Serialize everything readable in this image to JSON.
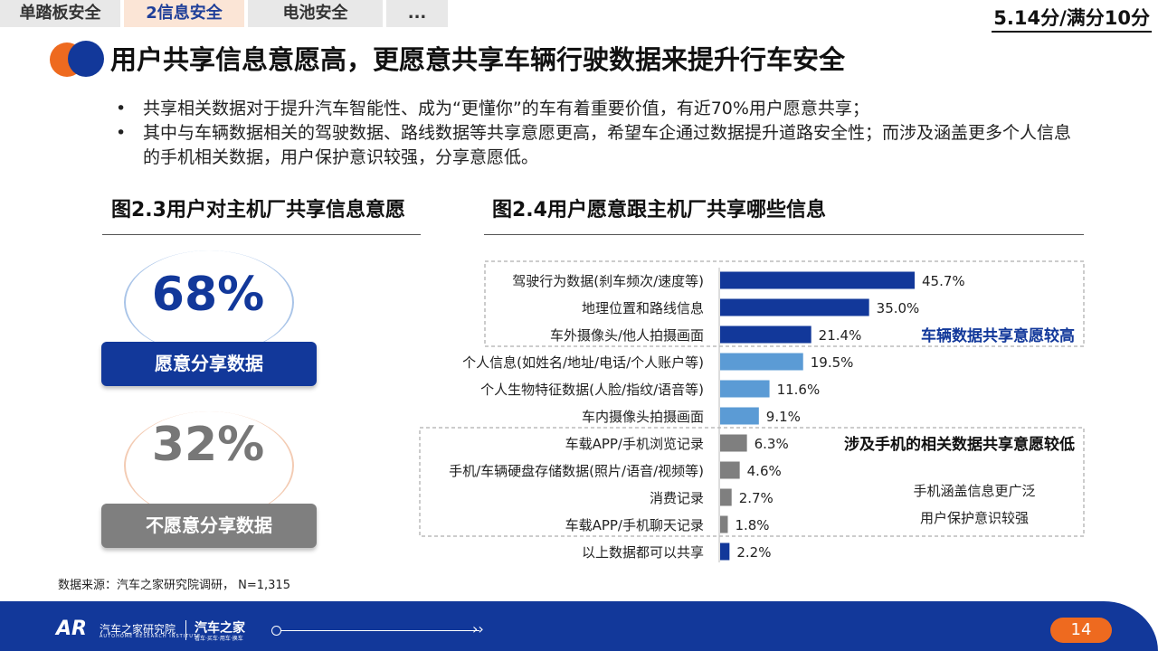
{
  "tabs": [
    {
      "label": "单踏板安全",
      "active": false
    },
    {
      "label": "2信息安全",
      "active": true
    },
    {
      "label": "电池安全",
      "active": false
    },
    {
      "label": "...",
      "active": false
    }
  ],
  "score": "5.14分/满分10分",
  "title": "用户共享信息意愿高，更愿意共享车辆行驶数据来提升行车安全",
  "bullets": [
    "共享相关数据对于提升汽车智能性、成为“更懂你”的车有着重要价值，有近70%用户愿意共享；",
    "其中与车辆数据相关的驾驶数据、路线数据等共享意愿更高，希望车企通过数据提升道路安全性；而涉及涵盖更多个人信息的手机相关数据，用户保护意识较强，分享意愿低。"
  ],
  "fig23": {
    "title": "图2.3用户对主机厂共享信息意愿",
    "yes_pct": "68%",
    "yes_label": "愿意分享数据",
    "no_pct": "32%",
    "no_label": "不愿意分享数据"
  },
  "fig24": {
    "title": "图2.4用户愿意跟主机厂共享哪些信息"
  },
  "chart_data": {
    "type": "bar",
    "orientation": "horizontal",
    "title": "图2.4用户愿意跟主机厂共享哪些信息",
    "categories": [
      "驾驶行为数据(刹车频次/速度等)",
      "地理位置和路线信息",
      "车外摄像头/他人拍摄画面",
      "个人信息(如姓名/地址/电话/个人账户等)",
      "个人生物特征数据(人脸/指纹/语音等)",
      "车内摄像头拍摄画面",
      "车载APP/手机浏览记录",
      "手机/车辆硬盘存储数据(照片/语音/视频等)",
      "消费记录",
      "车载APP/手机聊天记录",
      "以上数据都可以共享"
    ],
    "values": [
      45.7,
      35.0,
      21.4,
      19.5,
      11.6,
      9.1,
      6.3,
      4.6,
      2.7,
      1.8,
      2.2
    ],
    "value_labels": [
      "45.7%",
      "35.0%",
      "21.4%",
      "19.5%",
      "11.6%",
      "9.1%",
      "6.3%",
      "4.6%",
      "2.7%",
      "1.8%",
      "2.2%"
    ],
    "bar_colors": [
      "#12389a",
      "#12389a",
      "#12389a",
      "#5b9bd5",
      "#5b9bd5",
      "#5b9bd5",
      "#7f7f7f",
      "#7f7f7f",
      "#7f7f7f",
      "#7f7f7f",
      "#12389a"
    ],
    "xlim": [
      0,
      50
    ],
    "annotations": {
      "high": "车辆数据共享意愿较高",
      "low": "涉及手机的相关数据共享意愿较低",
      "note1": "手机涵盖信息更广泛",
      "note2": "用户保护意识较强"
    }
  },
  "source": "数据来源：汽车之家研究院调研，  N=1,315",
  "footer": {
    "org": "汽车之家研究院",
    "org_en": "AUTOHOME RESEARCH INSTITUTE",
    "brand": "汽车之家",
    "brand_sub": "看车·买车·用车·换车",
    "page": "14"
  },
  "colors": {
    "primary": "#12389a",
    "orange": "#ee6a1f",
    "light_blue": "#5b9bd5",
    "gray": "#7f7f7f"
  }
}
